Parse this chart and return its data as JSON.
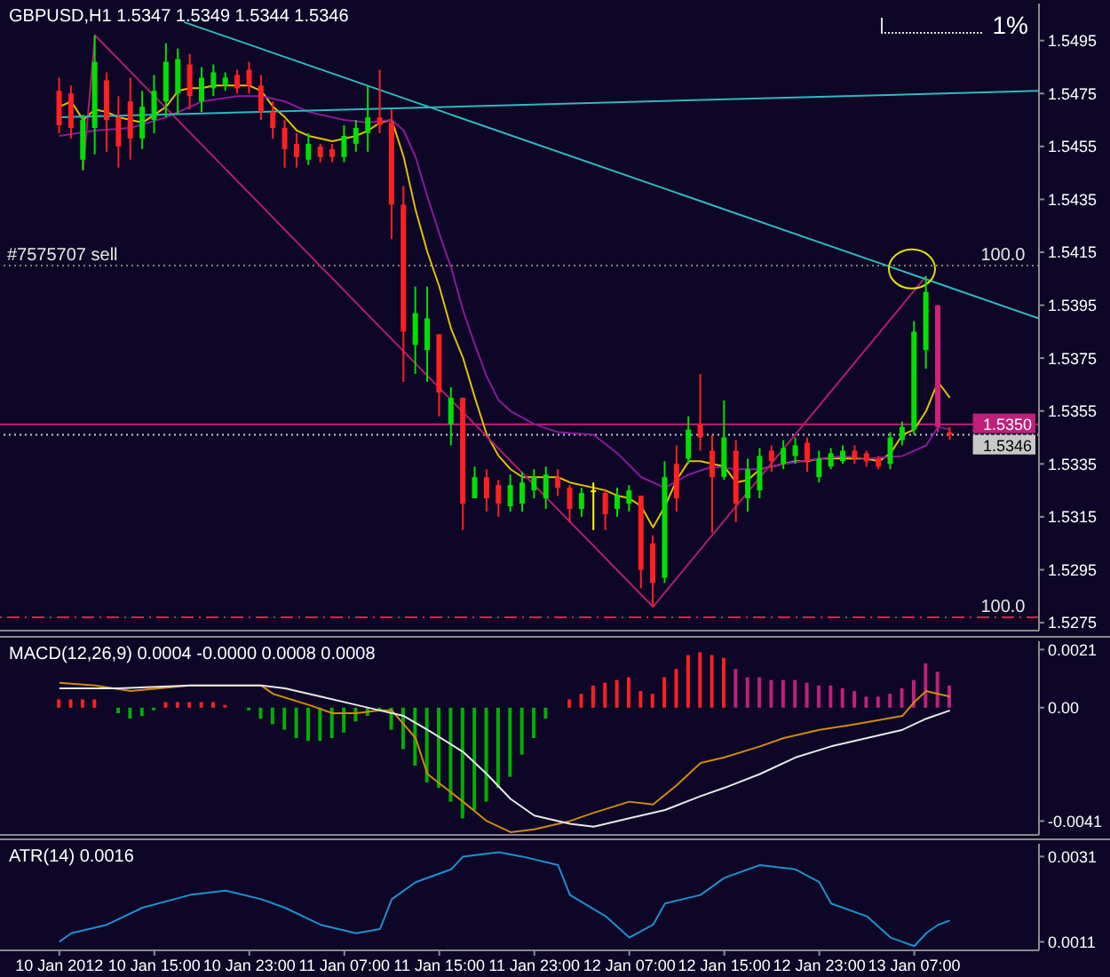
{
  "chart_data": [
    {
      "type": "candlestick",
      "title": "GBPUSD,H1 1.5347 1.5349 1.5344 1.5346",
      "x": [
        "2012-01-10T07:00",
        "2012-01-10T08:00",
        "2012-01-10T09:00",
        "2012-01-10T10:00",
        "2012-01-10T11:00",
        "2012-01-10T12:00",
        "2012-01-10T13:00",
        "2012-01-10T14:00",
        "2012-01-10T15:00",
        "2012-01-10T16:00",
        "2012-01-10T17:00",
        "2012-01-10T18:00",
        "2012-01-10T19:00",
        "2012-01-10T20:00",
        "2012-01-10T21:00",
        "2012-01-10T22:00",
        "2012-01-10T23:00",
        "2012-01-11T00:00",
        "2012-01-11T01:00",
        "2012-01-11T02:00",
        "2012-01-11T03:00",
        "2012-01-11T04:00",
        "2012-01-11T05:00",
        "2012-01-11T06:00",
        "2012-01-11T07:00",
        "2012-01-11T08:00",
        "2012-01-11T09:00",
        "2012-01-11T10:00",
        "2012-01-11T11:00",
        "2012-01-11T12:00",
        "2012-01-11T13:00",
        "2012-01-11T14:00",
        "2012-01-11T15:00",
        "2012-01-11T16:00",
        "2012-01-11T17:00",
        "2012-01-11T18:00",
        "2012-01-11T19:00",
        "2012-01-11T20:00",
        "2012-01-11T21:00",
        "2012-01-11T22:00",
        "2012-01-11T23:00",
        "2012-01-12T00:00",
        "2012-01-12T01:00",
        "2012-01-12T02:00",
        "2012-01-12T03:00",
        "2012-01-12T04:00",
        "2012-01-12T05:00",
        "2012-01-12T06:00",
        "2012-01-12T07:00",
        "2012-01-12T08:00",
        "2012-01-12T09:00",
        "2012-01-12T10:00",
        "2012-01-12T11:00",
        "2012-01-12T12:00",
        "2012-01-12T13:00",
        "2012-01-12T14:00",
        "2012-01-12T15:00",
        "2012-01-12T16:00",
        "2012-01-12T17:00",
        "2012-01-12T18:00",
        "2012-01-12T19:00",
        "2012-01-12T20:00",
        "2012-01-12T21:00",
        "2012-01-12T22:00",
        "2012-01-12T23:00",
        "2012-01-13T00:00",
        "2012-01-13T01:00",
        "2012-01-13T02:00",
        "2012-01-13T03:00",
        "2012-01-13T04:00",
        "2012-01-13T05:00",
        "2012-01-13T06:00",
        "2012-01-13T07:00",
        "2012-01-13T08:00",
        "2012-01-13T09:00",
        "2012-01-13T10:00"
      ],
      "ohlc": [
        [
          1.5476,
          1.5481,
          1.546,
          1.5463
        ],
        [
          1.5475,
          1.5478,
          1.5458,
          1.5462
        ],
        [
          1.545,
          1.5467,
          1.5446,
          1.5465
        ],
        [
          1.5462,
          1.5497,
          1.5452,
          1.5487
        ],
        [
          1.548,
          1.5483,
          1.5453,
          1.5465
        ],
        [
          1.5466,
          1.5474,
          1.5447,
          1.5455
        ],
        [
          1.5472,
          1.5481,
          1.545,
          1.5458
        ],
        [
          1.5458,
          1.5476,
          1.5454,
          1.547
        ],
        [
          1.5465,
          1.5482,
          1.546,
          1.5476
        ],
        [
          1.5472,
          1.5494,
          1.5466,
          1.5487
        ],
        [
          1.5475,
          1.5492,
          1.5467,
          1.5488
        ],
        [
          1.5486,
          1.549,
          1.5469,
          1.5474
        ],
        [
          1.5472,
          1.5485,
          1.5468,
          1.5481
        ],
        [
          1.5477,
          1.5486,
          1.5474,
          1.5483
        ],
        [
          1.5478,
          1.5483,
          1.5476,
          1.5481
        ],
        [
          1.5482,
          1.5484,
          1.5475,
          1.5477
        ],
        [
          1.5484,
          1.5487,
          1.5475,
          1.5478
        ],
        [
          1.5478,
          1.5482,
          1.5465,
          1.5468
        ],
        [
          1.5468,
          1.5472,
          1.5458,
          1.5462
        ],
        [
          1.5462,
          1.5465,
          1.5447,
          1.5454
        ],
        [
          1.5456,
          1.546,
          1.5447,
          1.5451
        ],
        [
          1.545,
          1.546,
          1.5448,
          1.5456
        ],
        [
          1.5455,
          1.5456,
          1.5449,
          1.5451
        ],
        [
          1.5454,
          1.5456,
          1.5449,
          1.5451
        ],
        [
          1.5451,
          1.5463,
          1.5449,
          1.5459
        ],
        [
          1.5456,
          1.5465,
          1.5453,
          1.5462
        ],
        [
          1.546,
          1.5478,
          1.5453,
          1.5466
        ],
        [
          1.5466,
          1.5484,
          1.546,
          1.5463
        ],
        [
          1.5464,
          1.5469,
          1.542,
          1.5433
        ],
        [
          1.5433,
          1.544,
          1.5366,
          1.5385
        ],
        [
          1.538,
          1.5402,
          1.5369,
          1.5392
        ],
        [
          1.5378,
          1.5402,
          1.5366,
          1.539
        ],
        [
          1.5384,
          1.5384,
          1.5353,
          1.5362
        ],
        [
          1.535,
          1.5364,
          1.5342,
          1.536
        ],
        [
          1.536,
          1.536,
          1.531,
          1.532
        ],
        [
          1.5322,
          1.5334,
          1.5322,
          1.533
        ],
        [
          1.533,
          1.5333,
          1.5317,
          1.5322
        ],
        [
          1.5327,
          1.5329,
          1.5315,
          1.532
        ],
        [
          1.5319,
          1.5331,
          1.5317,
          1.5327
        ],
        [
          1.532,
          1.5332,
          1.5317,
          1.5328
        ],
        [
          1.5325,
          1.5333,
          1.5322,
          1.533
        ],
        [
          1.5322,
          1.5334,
          1.5318,
          1.5331
        ],
        [
          1.533,
          1.5333,
          1.5323,
          1.5326
        ],
        [
          1.5326,
          1.5327,
          1.5313,
          1.5318
        ],
        [
          1.5318,
          1.5326,
          1.5315,
          1.5324
        ],
        [
          1.5325,
          1.5328,
          1.531,
          1.5325
        ],
        [
          1.5324,
          1.5325,
          1.531,
          1.5316
        ],
        [
          1.5318,
          1.5326,
          1.5315,
          1.5323
        ],
        [
          1.532,
          1.5327,
          1.5317,
          1.5325
        ],
        [
          1.5323,
          1.5323,
          1.5288,
          1.5295
        ],
        [
          1.5305,
          1.5308,
          1.5281,
          1.529
        ],
        [
          1.5292,
          1.5336,
          1.529,
          1.533
        ],
        [
          1.5335,
          1.5342,
          1.5317,
          1.5322
        ],
        [
          1.5337,
          1.5353,
          1.5335,
          1.5348
        ],
        [
          1.535,
          1.5369,
          1.534,
          1.5345
        ],
        [
          1.534,
          1.5346,
          1.5309,
          1.533
        ],
        [
          1.533,
          1.5359,
          1.5329,
          1.5345
        ],
        [
          1.534,
          1.5344,
          1.5313,
          1.532
        ],
        [
          1.5322,
          1.5337,
          1.5317,
          1.5333
        ],
        [
          1.5325,
          1.5341,
          1.5322,
          1.5338
        ],
        [
          1.534,
          1.5342,
          1.5332,
          1.5336
        ],
        [
          1.5335,
          1.5344,
          1.5333,
          1.5341
        ],
        [
          1.5338,
          1.5345,
          1.5335,
          1.5342
        ],
        [
          1.5343,
          1.5345,
          1.5332,
          1.5336
        ],
        [
          1.533,
          1.534,
          1.5328,
          1.5337
        ],
        [
          1.5334,
          1.5341,
          1.5333,
          1.5339
        ],
        [
          1.5336,
          1.5342,
          1.5335,
          1.534
        ],
        [
          1.534,
          1.5342,
          1.5335,
          1.5337
        ],
        [
          1.5339,
          1.534,
          1.5334,
          1.5336
        ],
        [
          1.5337,
          1.5338,
          1.5333,
          1.5334
        ],
        [
          1.5335,
          1.5347,
          1.5333,
          1.5345
        ],
        [
          1.5344,
          1.5351,
          1.5342,
          1.5349
        ],
        [
          1.5348,
          1.5389,
          1.5346,
          1.5385
        ],
        [
          1.5378,
          1.5406,
          1.5371,
          1.54
        ],
        [
          1.5395,
          1.5395,
          1.5347,
          1.5349
        ],
        [
          1.5347,
          1.5349,
          1.5344,
          1.5346
        ]
      ],
      "colors": [
        "#ff2020",
        "#ff2020",
        "#00e000",
        "#00e000",
        "#ff2020",
        "#ff2020",
        "#ff2020",
        "#00e000",
        "#00e000",
        "#00e000",
        "#00e000",
        "#ff2020",
        "#00e000",
        "#00e000",
        "#00e000",
        "#ff2020",
        "#ff2020",
        "#ff2020",
        "#ff2020",
        "#ff2020",
        "#ff2020",
        "#00e000",
        "#ff2020",
        "#ff2020",
        "#00e000",
        "#00e000",
        "#00e000",
        "#ff2020",
        "#ff2020",
        "#ff2020",
        "#00e000",
        "#00e000",
        "#ff2020",
        "#00e000",
        "#ff2020",
        "#00e000",
        "#ff2020",
        "#ff2020",
        "#00e000",
        "#00e000",
        "#00e000",
        "#00e000",
        "#ff2020",
        "#ff2020",
        "#00e000",
        "#ffff00",
        "#ff2020",
        "#00e000",
        "#00e000",
        "#ff2020",
        "#ff2020",
        "#00e000",
        "#ff2020",
        "#00e000",
        "#ff2020",
        "#ff2020",
        "#00e000",
        "#ff2020",
        "#00e000",
        "#00e000",
        "#ff2020",
        "#00e000",
        "#00e000",
        "#ff2020",
        "#00e000",
        "#00e000",
        "#00e000",
        "#ff2020",
        "#ff2020",
        "#ff2020",
        "#00e000",
        "#00e000",
        "#00e000",
        "#00e000",
        "#d0207a",
        "#ff2020"
      ],
      "series": [
        {
          "type": "line",
          "color": "#e0c000",
          "values": [
            1.547,
            1.5472,
            1.5465,
            1.5469,
            1.5468,
            1.5466,
            1.5465,
            1.5464,
            1.5467,
            1.547,
            1.5476,
            1.5477,
            1.5477,
            1.5478,
            1.5478,
            1.5478,
            1.5478,
            1.5476,
            1.547,
            1.5466,
            1.5461,
            1.5459,
            1.5458,
            1.5457,
            1.5458,
            1.5459,
            1.5461,
            1.5464,
            1.5465,
            1.5451,
            1.5431,
            1.5415,
            1.5402,
            1.5386,
            1.5375,
            1.536,
            1.5346,
            1.5338,
            1.5333,
            1.533,
            1.533,
            1.533,
            1.533,
            1.5328,
            1.5327,
            1.5326,
            1.5325,
            1.5323,
            1.5322,
            1.5319,
            1.5311,
            1.5319,
            1.5329,
            1.5336,
            1.5336,
            1.5335,
            1.5334,
            1.5328,
            1.5329,
            1.5333,
            1.5334,
            1.5335,
            1.5336,
            1.5336,
            1.5337,
            1.5337,
            1.5337,
            1.5337,
            1.5337,
            1.5336,
            1.5339,
            1.5346,
            1.5348,
            1.5355,
            1.5366,
            1.536
          ]
        },
        {
          "type": "line",
          "color": "#8a1a9a",
          "x": [
            "2012-01-10T07:00",
            "2012-01-10T10:00",
            "2012-01-10T13:00",
            "2012-01-10T16:00",
            "2012-01-10T19:00",
            "2012-01-10T22:00",
            "2012-01-11T00:00",
            "2012-01-11T02:00",
            "2012-01-11T04:00",
            "2012-01-11T07:00",
            "2012-01-11T09:00",
            "2012-01-11T11:00",
            "2012-01-11T12:00",
            "2012-01-11T13:00",
            "2012-01-11T14:00",
            "2012-01-11T15:00",
            "2012-01-11T16:00",
            "2012-01-11T17:00",
            "2012-01-11T18:00",
            "2012-01-11T19:00",
            "2012-01-11T20:00",
            "2012-01-11T21:00",
            "2012-01-11T23:00",
            "2012-01-12T01:00",
            "2012-01-12T04:00",
            "2012-01-12T06:00",
            "2012-01-12T08:00",
            "2012-01-12T10:00",
            "2012-01-12T12:00",
            "2012-01-12T14:00",
            "2012-01-12T16:00",
            "2012-01-12T18:00",
            "2012-01-12T20:00",
            "2012-01-12T23:00",
            "2012-01-13T01:00",
            "2012-01-13T03:00",
            "2012-01-13T06:00",
            "2012-01-13T08:00",
            "2012-01-13T09:00",
            "2012-01-13T10:00"
          ],
          "values": [
            1.5459,
            1.5461,
            1.5462,
            1.5466,
            1.5472,
            1.5474,
            1.5474,
            1.5472,
            1.5468,
            1.5465,
            1.5464,
            1.5465,
            1.5461,
            1.5451,
            1.5436,
            1.5422,
            1.5409,
            1.5393,
            1.538,
            1.5368,
            1.5359,
            1.5355,
            1.535,
            1.5347,
            1.5346,
            1.5339,
            1.533,
            1.5326,
            1.5331,
            1.5334,
            1.5333,
            1.5333,
            1.5335,
            1.5337,
            1.5338,
            1.5337,
            1.5338,
            1.5342,
            1.5349,
            1.5348
          ]
        },
        {
          "type": "line",
          "color": "#b01e6e",
          "x": [
            "2012-01-10T09:00",
            "2012-01-10T10:00",
            "2012-01-12T09:00",
            "2012-01-13T08:00"
          ],
          "values": [
            1.5446,
            1.5497,
            1.5281,
            1.5406
          ]
        },
        {
          "type": "line",
          "color": "#30b8c0",
          "x": [
            "2012-01-10T17:30",
            "2012-01-13T17:30"
          ],
          "values": [
            1.5502,
            1.539
          ]
        },
        {
          "type": "line",
          "color": "#30b8c0",
          "x": [
            "2012-01-10T07:00",
            "2012-01-13T17:30"
          ],
          "values": [
            1.5466,
            1.5476
          ]
        }
      ],
      "xlim": [
        "2012-01-10T02:00",
        "2012-01-13T17:30"
      ],
      "ylim": [
        1.5272,
        1.5509
      ],
      "yticks": [
        1.5275,
        1.5295,
        1.5315,
        1.5335,
        1.5355,
        1.5375,
        1.5395,
        1.5415,
        1.5435,
        1.5455,
        1.5475,
        1.5495
      ],
      "ref_lines": [
        {
          "axis": "y",
          "value": 1.541,
          "color": "#808080",
          "line_style": "dotted"
        },
        {
          "axis": "y",
          "value": 1.535,
          "label": "1.5350",
          "color": "#c0207a",
          "line_style": "solid"
        },
        {
          "axis": "y",
          "value": 1.5346,
          "label": "1.5346",
          "color": "#c8c8c8",
          "line_style": "dotted"
        },
        {
          "axis": "y",
          "value": 1.5277,
          "color": "#e02040",
          "line_style": "dashed"
        }
      ],
      "annotations": [
        {
          "text": "#7575707 sell",
          "x": "2012-01-10T02:00",
          "y": 1.541
        },
        {
          "text": "100.0",
          "x": "2012-01-13T12:00",
          "y": 1.541
        },
        {
          "text": "100.0",
          "x": "2012-01-13T12:00",
          "y": 1.5277
        },
        "1%"
      ],
      "tick_labels": "y"
    },
    {
      "type": "bar",
      "title": "MACD(12,26,9) 0.0004 -0.0000 0.0008 0.0008",
      "x": [
        "2012-01-10T07:00",
        "2012-01-10T08:00",
        "2012-01-10T09:00",
        "2012-01-10T10:00",
        "2012-01-10T11:00",
        "2012-01-10T12:00",
        "2012-01-10T13:00",
        "2012-01-10T14:00",
        "2012-01-10T15:00",
        "2012-01-10T16:00",
        "2012-01-10T17:00",
        "2012-01-10T18:00",
        "2012-01-10T19:00",
        "2012-01-10T20:00",
        "2012-01-10T21:00",
        "2012-01-10T22:00",
        "2012-01-10T23:00",
        "2012-01-11T00:00",
        "2012-01-11T01:00",
        "2012-01-11T02:00",
        "2012-01-11T03:00",
        "2012-01-11T04:00",
        "2012-01-11T05:00",
        "2012-01-11T06:00",
        "2012-01-11T07:00",
        "2012-01-11T08:00",
        "2012-01-11T09:00",
        "2012-01-11T10:00",
        "2012-01-11T11:00",
        "2012-01-11T12:00",
        "2012-01-11T13:00",
        "2012-01-11T14:00",
        "2012-01-11T15:00",
        "2012-01-11T16:00",
        "2012-01-11T17:00",
        "2012-01-11T18:00",
        "2012-01-11T19:00",
        "2012-01-11T20:00",
        "2012-01-11T21:00",
        "2012-01-11T22:00",
        "2012-01-11T23:00",
        "2012-01-12T00:00",
        "2012-01-12T01:00",
        "2012-01-12T02:00",
        "2012-01-12T03:00",
        "2012-01-12T04:00",
        "2012-01-12T05:00",
        "2012-01-12T06:00",
        "2012-01-12T07:00",
        "2012-01-12T08:00",
        "2012-01-12T09:00",
        "2012-01-12T10:00",
        "2012-01-12T11:00",
        "2012-01-12T12:00",
        "2012-01-12T13:00",
        "2012-01-12T14:00",
        "2012-01-12T15:00",
        "2012-01-12T16:00",
        "2012-01-12T17:00",
        "2012-01-12T18:00",
        "2012-01-12T19:00",
        "2012-01-12T20:00",
        "2012-01-12T21:00",
        "2012-01-12T22:00",
        "2012-01-12T23:00",
        "2012-01-13T00:00",
        "2012-01-13T01:00",
        "2012-01-13T02:00",
        "2012-01-13T03:00",
        "2012-01-13T04:00",
        "2012-01-13T05:00",
        "2012-01-13T06:00",
        "2012-01-13T07:00",
        "2012-01-13T08:00",
        "2012-01-13T09:00",
        "2012-01-13T10:00"
      ],
      "series": [
        {
          "values": [
            0.0003,
            0.0003,
            0.0003,
            0.0003,
            null,
            -0.0002,
            -0.0004,
            -0.0003,
            -0.0001,
            0.0002,
            0.0002,
            0.0002,
            0.0002,
            0.0002,
            0.0001,
            null,
            -0.0001,
            -0.0004,
            -0.0006,
            -0.0008,
            -0.0011,
            -0.0012,
            -0.0012,
            -0.0011,
            -0.0009,
            -0.0005,
            -0.0003,
            -0.0001,
            -0.0008,
            -0.0015,
            -0.0021,
            -0.0027,
            -0.0029,
            -0.0034,
            -0.004,
            -0.0037,
            -0.0034,
            -0.0029,
            -0.0025,
            -0.0017,
            -0.0011,
            -0.0004,
            null,
            0.0003,
            0.0005,
            0.0008,
            0.0009,
            0.001,
            0.0011,
            0.0006,
            0.0005,
            0.0011,
            0.0014,
            0.0019,
            0.002,
            0.0019,
            0.0018,
            0.0014,
            0.0011,
            0.0011,
            0.001,
            0.001,
            0.001,
            0.0009,
            0.0008,
            0.0008,
            0.0007,
            0.0006,
            0.0004,
            0.0004,
            0.0005,
            0.0007,
            0.001,
            0.0016,
            0.0013,
            0.0008
          ],
          "colors": [
            "#ff2020",
            "#ff2020",
            "#ff2020",
            "#ff2020",
            "#00b000",
            "#00b000",
            "#00b000",
            "#00b000",
            "#00b000",
            "#ff2020",
            "#ff2020",
            "#ff2020",
            "#ff2020",
            "#ff2020",
            "#ff2020",
            "#00b000",
            "#00b000",
            "#00b000",
            "#00b000",
            "#00b000",
            "#00b000",
            "#00b000",
            "#00b000",
            "#00b000",
            "#00b000",
            "#00b000",
            "#00b000",
            "#00b000",
            "#00b000",
            "#00b000",
            "#00b000",
            "#00b000",
            "#00b000",
            "#00b000",
            "#00b000",
            "#00b000",
            "#00b000",
            "#00b000",
            "#00b000",
            "#00b000",
            "#00b000",
            "#00b000",
            "#00b000",
            "#ff2020",
            "#ff2020",
            "#ff2020",
            "#ff2020",
            "#ff2020",
            "#ff2020",
            "#ff2020",
            "#ff2020",
            "#ff2020",
            "#ff2020",
            "#ff2020",
            "#ff2020",
            "#ff2020",
            "#ff2020",
            "#c0207a",
            "#c0207a",
            "#c0207a",
            "#c0207a",
            "#c0207a",
            "#c0207a",
            "#c0207a",
            "#c0207a",
            "#c0207a",
            "#c0207a",
            "#c0207a",
            "#c0207a",
            "#c0207a",
            "#c0207a",
            "#c0207a",
            "#c0207a",
            "#c0207a",
            "#c0207a",
            "#c0207a"
          ]
        },
        {
          "type": "line",
          "color": "#d08a10",
          "x": [
            "2012-01-10T07:00",
            "2012-01-10T10:00",
            "2012-01-10T13:00",
            "2012-01-10T18:00",
            "2012-01-10T21:00",
            "2012-01-11T00:00",
            "2012-01-11T01:00",
            "2012-01-11T04:00",
            "2012-01-11T06:00",
            "2012-01-11T08:00",
            "2012-01-11T10:00",
            "2012-01-11T11:00",
            "2012-01-11T13:00",
            "2012-01-11T14:00",
            "2012-01-11T17:00",
            "2012-01-11T19:00",
            "2012-01-11T21:00",
            "2012-01-11T23:00",
            "2012-01-12T02:00",
            "2012-01-12T04:00",
            "2012-01-12T07:00",
            "2012-01-12T09:00",
            "2012-01-12T11:00",
            "2012-01-12T13:00",
            "2012-01-12T15:00",
            "2012-01-12T18:00",
            "2012-01-12T20:00",
            "2012-01-12T23:00",
            "2012-01-13T02:00",
            "2012-01-13T06:00",
            "2012-01-13T07:00",
            "2012-01-13T08:00",
            "2012-01-13T09:00",
            "2012-01-13T10:00"
          ],
          "values": [
            0.0009,
            0.0008,
            0.0006,
            0.0008,
            0.0008,
            0.0008,
            0.0005,
            0.0001,
            -0.0002,
            -0.0002,
            -0.0001,
            -0.0001,
            -0.0011,
            -0.0024,
            -0.0034,
            -0.0041,
            -0.0045,
            -0.0044,
            -0.0041,
            -0.0038,
            -0.0034,
            -0.0035,
            -0.0028,
            -0.002,
            -0.0018,
            -0.0014,
            -0.0011,
            -0.0008,
            -0.0006,
            -0.0003,
            0.0002,
            0.0006,
            0.0005,
            0.0004
          ]
        },
        {
          "type": "line",
          "color": "#e8e8e8",
          "x": [
            "2012-01-10T07:00",
            "2012-01-10T12:00",
            "2012-01-10T18:00",
            "2012-01-11T00:00",
            "2012-01-11T02:00",
            "2012-01-11T05:00",
            "2012-01-11T08:00",
            "2012-01-11T10:00",
            "2012-01-11T12:00",
            "2012-01-11T14:00",
            "2012-01-11T17:00",
            "2012-01-11T19:00",
            "2012-01-11T21:00",
            "2012-01-11T23:00",
            "2012-01-12T02:00",
            "2012-01-12T04:00",
            "2012-01-12T07:00",
            "2012-01-12T10:00",
            "2012-01-12T13:00",
            "2012-01-12T15:00",
            "2012-01-12T18:00",
            "2012-01-12T21:00",
            "2012-01-13T00:00",
            "2012-01-13T03:00",
            "2012-01-13T06:00",
            "2012-01-13T08:00",
            "2012-01-13T10:00"
          ],
          "values": [
            0.0007,
            0.0007,
            0.0008,
            0.0008,
            0.0007,
            0.0004,
            0.0001,
            -0.0001,
            -0.0003,
            -0.0008,
            -0.0016,
            -0.0024,
            -0.0033,
            -0.0039,
            -0.0042,
            -0.0043,
            -0.004,
            -0.0037,
            -0.0032,
            -0.0029,
            -0.0024,
            -0.0018,
            -0.0014,
            -0.0011,
            -0.0008,
            -0.0004,
            -0.0001
          ]
        }
      ],
      "xlim": [
        "2012-01-10T02:00",
        "2012-01-13T17:30"
      ],
      "ylim": [
        -0.0046,
        0.0024
      ],
      "yticks": [
        0.0021,
        {
          "value": 0,
          "label": "0.00"
        },
        -0.0041
      ],
      "tick_labels": "y"
    },
    {
      "type": "line",
      "title": "ATR(14) 0.0016",
      "series": [
        {
          "color": "#1e90d0",
          "x": [
            "2012-01-10T07:00",
            "2012-01-10T08:00",
            "2012-01-10T11:00",
            "2012-01-10T14:00",
            "2012-01-10T18:00",
            "2012-01-10T21:00",
            "2012-01-11T00:00",
            "2012-01-11T02:00",
            "2012-01-11T05:00",
            "2012-01-11T08:00",
            "2012-01-11T10:00",
            "2012-01-11T11:00",
            "2012-01-11T13:00",
            "2012-01-11T16:00",
            "2012-01-11T17:00",
            "2012-01-11T20:00",
            "2012-01-11T22:00",
            "2012-01-12T01:00",
            "2012-01-12T02:00",
            "2012-01-12T05:00",
            "2012-01-12T07:00",
            "2012-01-12T09:00",
            "2012-01-12T10:00",
            "2012-01-12T13:00",
            "2012-01-12T15:00",
            "2012-01-12T18:00",
            "2012-01-12T21:00",
            "2012-01-12T23:00",
            "2012-01-13T00:00",
            "2012-01-13T03:00",
            "2012-01-13T05:00",
            "2012-01-13T07:00",
            "2012-01-13T08:00",
            "2012-01-13T09:00",
            "2012-01-13T10:00"
          ],
          "values": [
            0.0011,
            0.0013,
            0.0015,
            0.0019,
            0.0022,
            0.0023,
            0.0021,
            0.0019,
            0.0015,
            0.0013,
            0.0014,
            0.0021,
            0.0025,
            0.0028,
            0.0031,
            0.0032,
            0.0031,
            0.0029,
            0.0022,
            0.0017,
            0.0012,
            0.0015,
            0.002,
            0.0022,
            0.0026,
            0.0029,
            0.0028,
            0.0025,
            0.002,
            0.0017,
            0.0012,
            0.001,
            0.0013,
            0.0015,
            0.0016
          ]
        }
      ],
      "xlim": [
        "2012-01-10T02:00",
        "2012-01-13T17:30"
      ],
      "ylim": [
        0.0009,
        0.0034
      ],
      "yticks": [
        0.0031,
        0.0011
      ],
      "xticks": [
        {
          "value": "2012-01-10T07:00",
          "label": "10 Jan 2012"
        },
        {
          "value": "2012-01-10T15:00",
          "label": "10 Jan 15:00"
        },
        {
          "value": "2012-01-10T23:00",
          "label": "10 Jan 23:00"
        },
        {
          "value": "2012-01-11T07:00",
          "label": "11 Jan 07:00"
        },
        {
          "value": "2012-01-11T15:00",
          "label": "11 Jan 15:00"
        },
        {
          "value": "2012-01-11T23:00",
          "label": "11 Jan 23:00"
        },
        {
          "value": "2012-01-12T07:00",
          "label": "12 Jan 07:00"
        },
        {
          "value": "2012-01-12T15:00",
          "label": "12 Jan 15:00"
        },
        {
          "value": "2012-01-12T23:00",
          "label": "12 Jan 23:00"
        },
        {
          "value": "2012-01-13T07:00",
          "label": "13 Jan 07:00"
        }
      ]
    }
  ]
}
